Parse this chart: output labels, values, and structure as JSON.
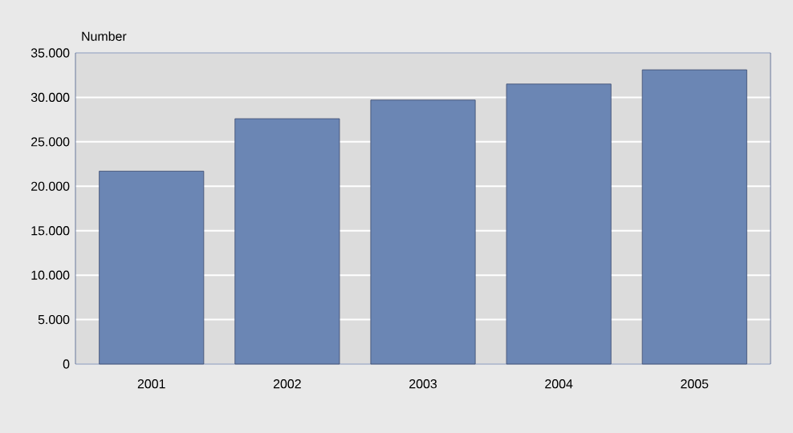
{
  "chart_data": {
    "type": "bar",
    "ylabel": "Number",
    "categories": [
      "2001",
      "2002",
      "2003",
      "2004",
      "2005"
    ],
    "values": [
      21700,
      27600,
      29700,
      31500,
      33100
    ],
    "color": "#6b86b4",
    "ylim": [
      0,
      35000
    ],
    "yticks": [
      {
        "value": 0,
        "label": "0"
      },
      {
        "value": 5000,
        "label": "5.000"
      },
      {
        "value": 10000,
        "label": "10.000"
      },
      {
        "value": 15000,
        "label": "15.000"
      },
      {
        "value": 20000,
        "label": "20.000"
      },
      {
        "value": 25000,
        "label": "25.000"
      },
      {
        "value": 30000,
        "label": "30.000"
      },
      {
        "value": 35000,
        "label": "35.000"
      }
    ],
    "grid": "y"
  }
}
